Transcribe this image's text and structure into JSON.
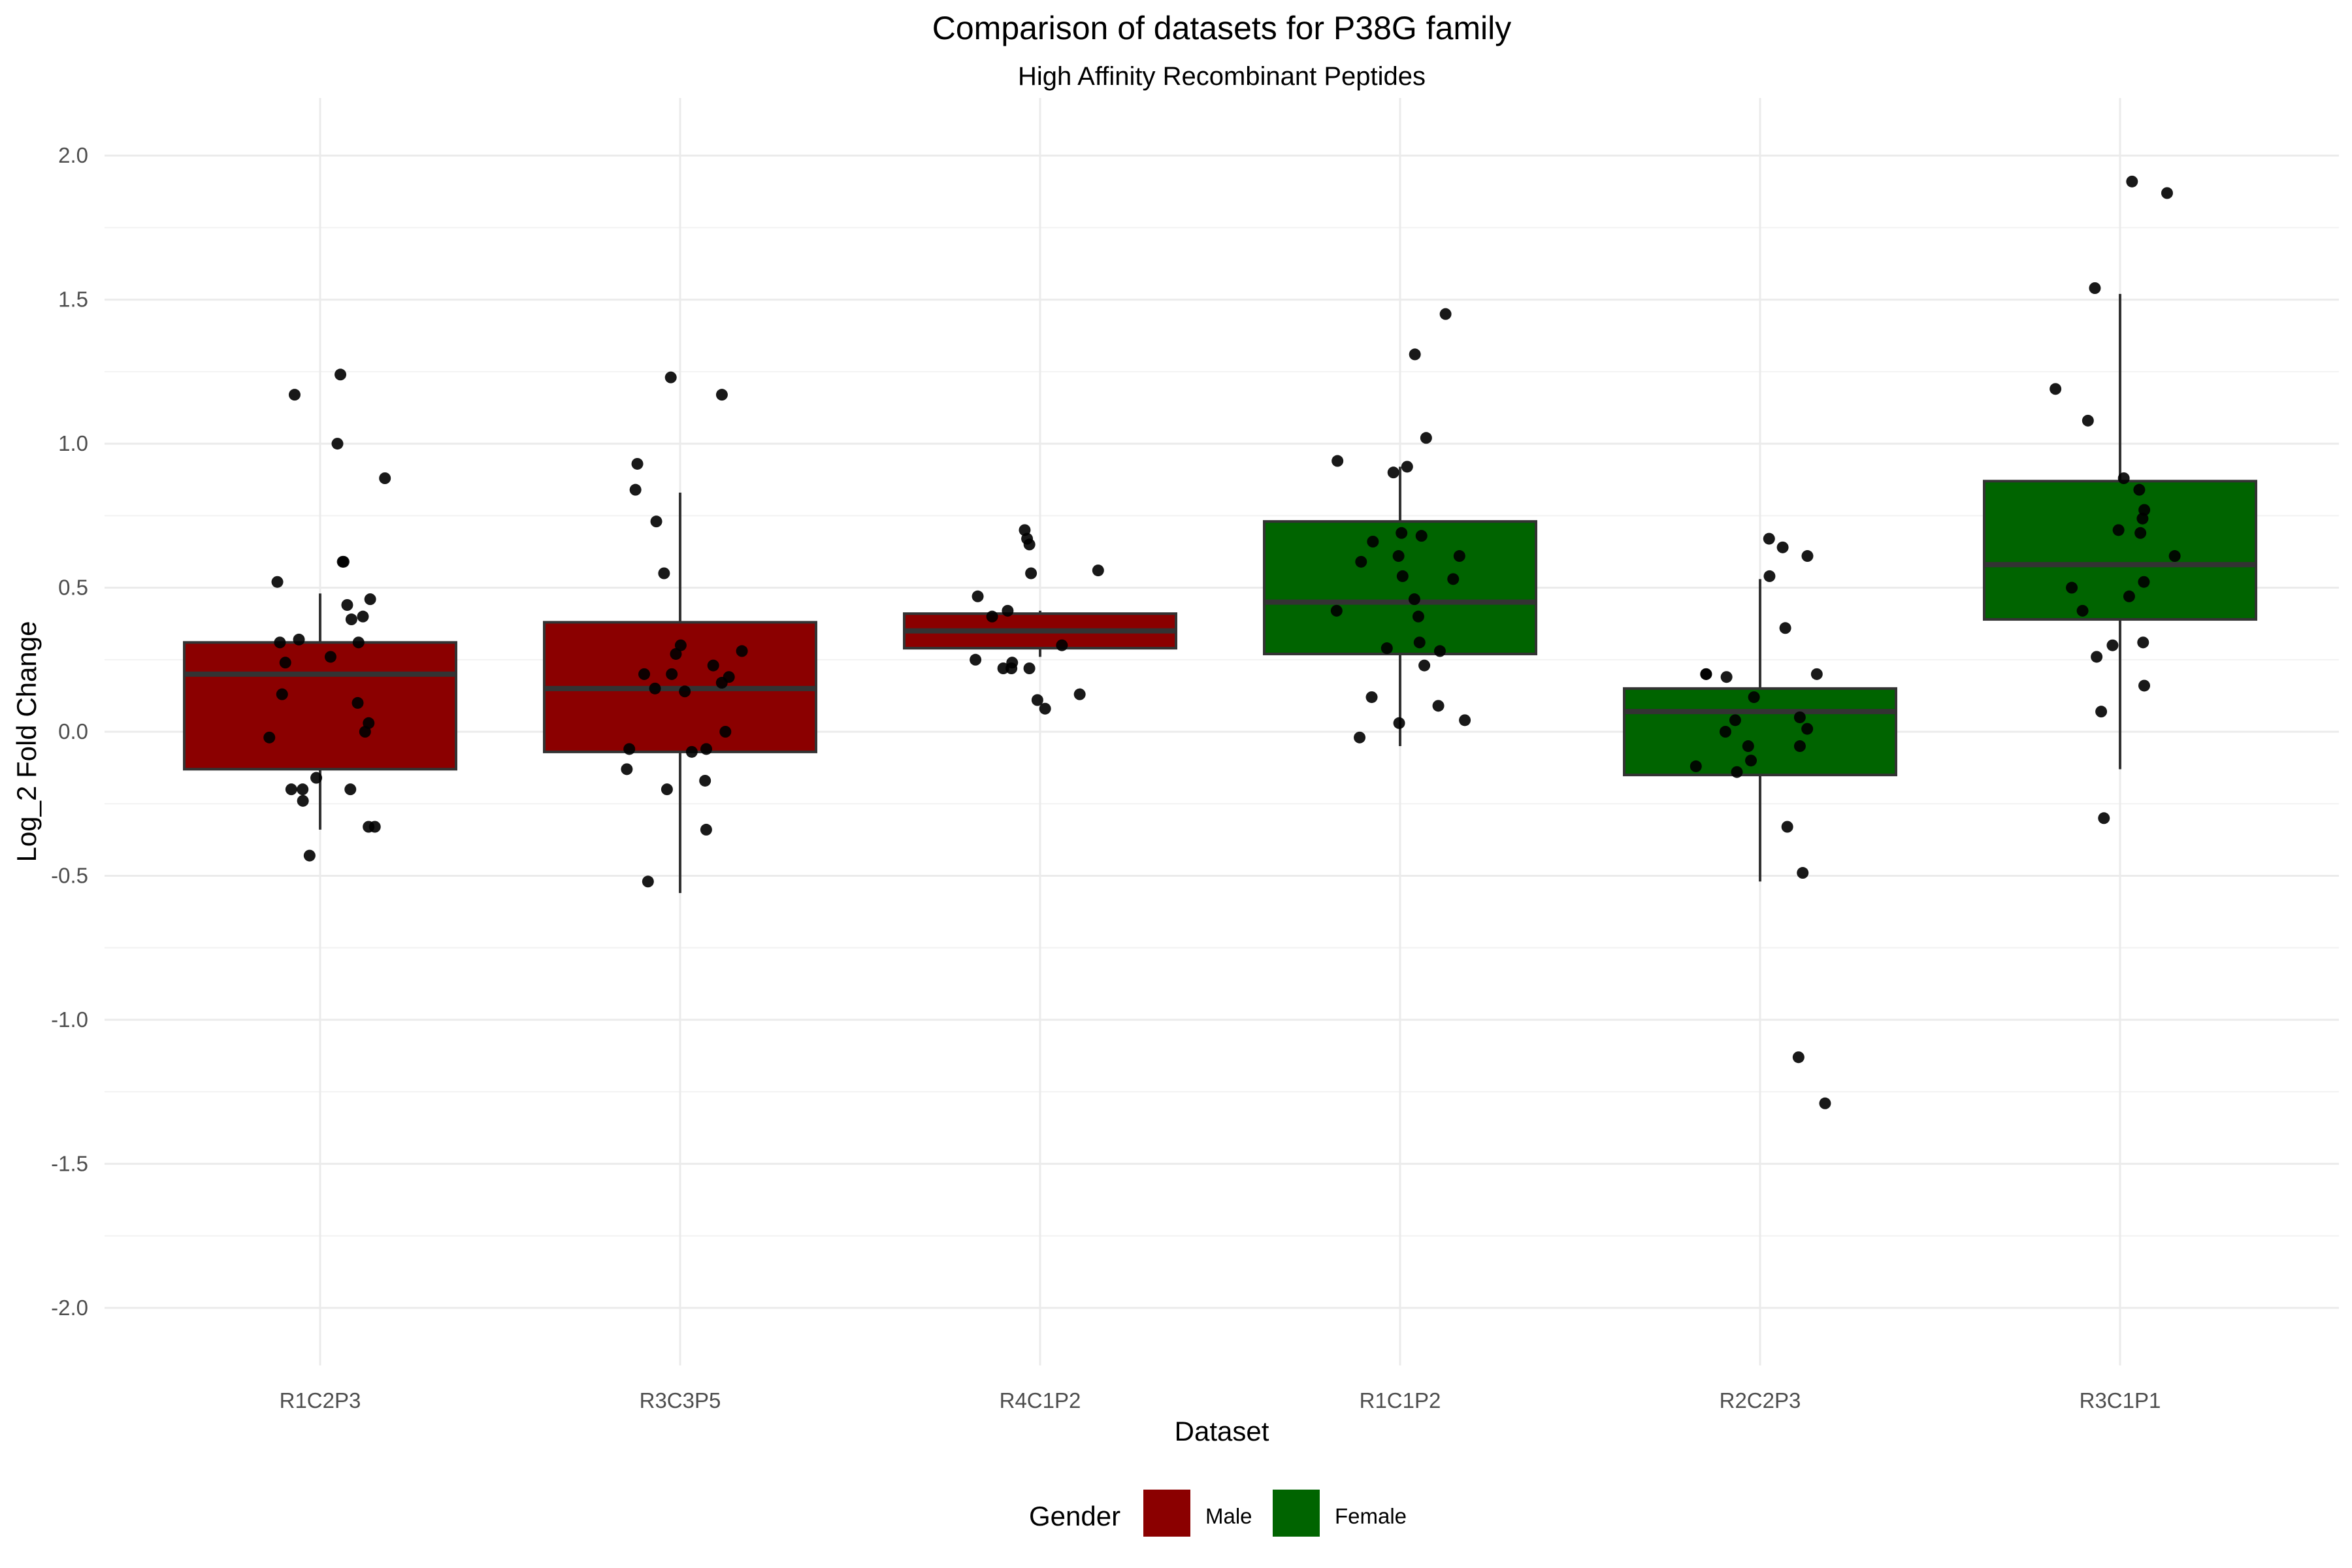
{
  "chart_data": {
    "type": "box",
    "title": "Comparison of datasets for P38G family",
    "subtitle": "High Affinity Recombinant Peptides",
    "xlabel": "Dataset",
    "ylabel": "Log_2 Fold Change",
    "ylim": [
      -2.2,
      2.2
    ],
    "yticks": [
      2.0,
      1.5,
      1.0,
      0.5,
      0.0,
      -0.5,
      -1.0,
      -1.5,
      -2.0
    ],
    "ytick_labels": [
      "2.0",
      "1.5",
      "1.0",
      "0.5",
      "0.0",
      "-0.5",
      "-1.0",
      "-1.5",
      "-2.0"
    ],
    "grid": true,
    "legend": {
      "title": "Gender",
      "position": "bottom",
      "entries": [
        {
          "label": "Male",
          "color": "#8B0000"
        },
        {
          "label": "Female",
          "color": "#006400"
        }
      ]
    },
    "categories": [
      "R1C2P3",
      "R3C3P5",
      "R4C1P2",
      "R1C1P2",
      "R2C2P3",
      "R3C1P1"
    ],
    "boxes": [
      {
        "category": "R1C2P3",
        "group": "Male",
        "color": "#8B0000",
        "q1": -0.13,
        "median": 0.2,
        "q3": 0.31,
        "whisker_low": -0.34,
        "whisker_high": 0.48,
        "points": [
          1.24,
          1.17,
          1.0,
          0.88,
          0.59,
          0.59,
          0.52,
          0.46,
          0.44,
          0.4,
          0.39,
          0.32,
          0.31,
          0.31,
          0.26,
          0.24,
          0.13,
          0.1,
          0.03,
          0.0,
          -0.02,
          -0.16,
          -0.2,
          -0.2,
          -0.2,
          -0.24,
          -0.33,
          -0.33,
          -0.43
        ]
      },
      {
        "category": "R3C3P5",
        "group": "Male",
        "color": "#8B0000",
        "q1": -0.07,
        "median": 0.15,
        "q3": 0.38,
        "whisker_low": -0.56,
        "whisker_high": 0.83,
        "points": [
          1.23,
          1.17,
          0.93,
          0.84,
          0.73,
          0.55,
          0.3,
          0.28,
          0.27,
          0.23,
          0.2,
          0.2,
          0.19,
          0.17,
          0.15,
          0.14,
          0.0,
          -0.06,
          -0.06,
          -0.07,
          -0.13,
          -0.17,
          -0.2,
          -0.34,
          -0.52
        ]
      },
      {
        "category": "R4C1P2",
        "group": "Male",
        "color": "#8B0000",
        "q1": 0.29,
        "median": 0.35,
        "q3": 0.41,
        "whisker_low": 0.26,
        "whisker_high": 0.42,
        "points": [
          0.7,
          0.67,
          0.65,
          0.56,
          0.55,
          0.47,
          0.42,
          0.4,
          0.3,
          0.25,
          0.24,
          0.22,
          0.22,
          0.22,
          0.13,
          0.11,
          0.08
        ]
      },
      {
        "category": "R1C1P2",
        "group": "Female",
        "color": "#006400",
        "q1": 0.27,
        "median": 0.45,
        "q3": 0.73,
        "whisker_low": -0.05,
        "whisker_high": 0.92,
        "points": [
          1.45,
          1.31,
          1.02,
          0.94,
          0.92,
          0.9,
          0.69,
          0.68,
          0.66,
          0.61,
          0.61,
          0.59,
          0.54,
          0.53,
          0.46,
          0.42,
          0.4,
          0.31,
          0.29,
          0.28,
          0.23,
          0.12,
          0.09,
          0.04,
          0.03,
          -0.02
        ]
      },
      {
        "category": "R2C2P3",
        "group": "Female",
        "color": "#006400",
        "q1": -0.15,
        "median": 0.07,
        "q3": 0.15,
        "whisker_low": -0.52,
        "whisker_high": 0.53,
        "points": [
          0.67,
          0.64,
          0.61,
          0.54,
          0.36,
          0.2,
          0.2,
          0.2,
          0.19,
          0.12,
          0.05,
          0.04,
          0.01,
          0.0,
          -0.05,
          -0.05,
          -0.1,
          -0.12,
          -0.14,
          -0.33,
          -0.49,
          -1.13,
          -1.29
        ]
      },
      {
        "category": "R3C1P1",
        "group": "Female",
        "color": "#006400",
        "q1": 0.39,
        "median": 0.58,
        "q3": 0.87,
        "whisker_low": -0.13,
        "whisker_high": 1.52,
        "points": [
          1.91,
          1.87,
          1.54,
          1.19,
          1.08,
          0.88,
          0.84,
          0.77,
          0.74,
          0.7,
          0.69,
          0.61,
          0.52,
          0.5,
          0.47,
          0.42,
          0.31,
          0.3,
          0.26,
          0.16,
          0.07,
          -0.3
        ]
      }
    ]
  }
}
